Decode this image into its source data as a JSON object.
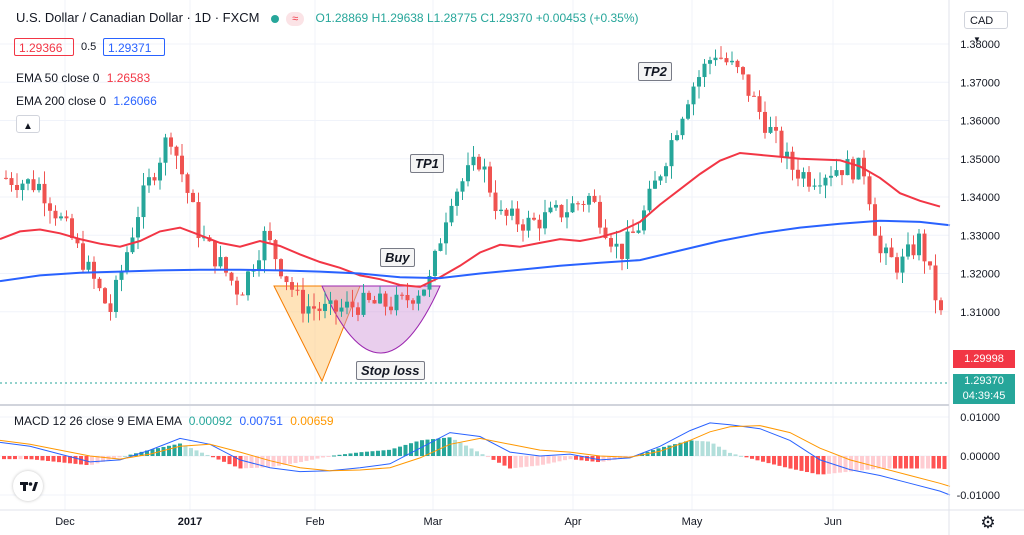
{
  "header": {
    "title": "U.S. Dollar / Canadian Dollar · 1D · FXCM",
    "ohlc": {
      "o": "O1.28869",
      "h": "H1.29638",
      "l": "L1.28775",
      "c": "C1.29370",
      "chg": "+0.00453 (+0.35%)"
    },
    "sell_price": "1.29366",
    "spread": "0.5",
    "buy_price": "1.29371",
    "currency": "CAD"
  },
  "indicators": {
    "ema50": {
      "label": "EMA 50 close 0",
      "value": "1.26583",
      "color": "#f23645"
    },
    "ema200": {
      "label": "EMA 200 close 0",
      "value": "1.26066",
      "color": "#2962ff"
    },
    "macd": {
      "label": "MACD 12 26 close 9 EMA EMA",
      "v1": "0.00092",
      "v2": "0.00751",
      "v3": "0.00659"
    }
  },
  "annotations": {
    "tp1": "TP1",
    "tp2": "TP2",
    "buy": "Buy",
    "stop": "Stop loss"
  },
  "price_tags": {
    "ema_value": "1.29998",
    "last_price": "1.29370",
    "countdown": "04:39:45"
  },
  "colors": {
    "up": "#26a69a",
    "down": "#ef5350",
    "macd_line": "#2962ff",
    "signal_line": "#ff9800"
  },
  "chart_data": {
    "type": "line",
    "price_axis": {
      "ticks": [
        "1.38000",
        "1.37000",
        "1.36000",
        "1.35000",
        "1.34000",
        "1.33000",
        "1.32000",
        "1.31000"
      ],
      "ylim": [
        1.295,
        1.383
      ]
    },
    "macd_axis": {
      "ticks": [
        "0.01000",
        "0.00000",
        "-0.01000"
      ],
      "ylim": [
        -0.0122,
        0.0122
      ]
    },
    "time_axis": [
      "Dec",
      "2017",
      "Feb",
      "Mar",
      "Apr",
      "May",
      "Jun"
    ],
    "series": [
      {
        "name": "EMA 50",
        "x": [
          0,
          20,
          40,
          60,
          80,
          100,
          120,
          140,
          160,
          180,
          200,
          220,
          240,
          260,
          280,
          300,
          320,
          340,
          360,
          380,
          400,
          420,
          440,
          460,
          480,
          500,
          520,
          540,
          560,
          580,
          600,
          620,
          640,
          660,
          680,
          700,
          720,
          740,
          760,
          780,
          800,
          820,
          840,
          860,
          880,
          900,
          920,
          940
        ],
        "values": [
          1.329,
          1.331,
          1.3315,
          1.3305,
          1.329,
          1.3278,
          1.327,
          1.3285,
          1.331,
          1.332,
          1.33,
          1.328,
          1.327,
          1.3285,
          1.3272,
          1.325,
          1.323,
          1.3215,
          1.3195,
          1.3185,
          1.317,
          1.3165,
          1.319,
          1.322,
          1.3255,
          1.3275,
          1.327,
          1.328,
          1.329,
          1.3285,
          1.3295,
          1.331,
          1.3335,
          1.338,
          1.342,
          1.346,
          1.3495,
          1.3515,
          1.351,
          1.3505,
          1.35,
          1.3498,
          1.3496,
          1.348,
          1.345,
          1.341,
          1.339,
          1.3375
        ]
      },
      {
        "name": "EMA 200",
        "x": [
          0,
          40,
          80,
          120,
          160,
          200,
          240,
          280,
          320,
          360,
          400,
          440,
          480,
          520,
          560,
          600,
          640,
          680,
          720,
          760,
          800,
          840,
          880,
          920,
          950
        ],
        "values": [
          1.318,
          1.3195,
          1.3202,
          1.3205,
          1.3208,
          1.321,
          1.321,
          1.3208,
          1.3205,
          1.32,
          1.319,
          1.3188,
          1.32,
          1.321,
          1.322,
          1.3228,
          1.3235,
          1.326,
          1.3285,
          1.3305,
          1.332,
          1.333,
          1.3338,
          1.3335,
          1.3326
        ]
      },
      {
        "name": "MACD",
        "x": [
          0,
          30,
          60,
          90,
          120,
          150,
          180,
          210,
          240,
          270,
          300,
          330,
          360,
          390,
          420,
          450,
          480,
          510,
          540,
          570,
          600,
          630,
          660,
          690,
          710,
          730,
          760,
          790,
          820,
          850,
          880,
          910,
          940,
          950
        ],
        "values": [
          0.0035,
          0.0025,
          0.0005,
          -0.0015,
          -0.001,
          0.0015,
          0.0045,
          0.003,
          -0.001,
          -0.003,
          -0.004,
          -0.0038,
          -0.003,
          -0.002,
          0.002,
          0.006,
          0.005,
          0.001,
          0.0,
          0.0005,
          -0.001,
          -0.0005,
          0.0025,
          0.0065,
          0.0085,
          0.008,
          0.007,
          0.004,
          -0.001,
          -0.0035,
          -0.005,
          -0.007,
          -0.009,
          -0.01
        ]
      },
      {
        "name": "Signal",
        "x": [
          0,
          30,
          60,
          90,
          120,
          150,
          180,
          210,
          240,
          270,
          300,
          330,
          360,
          390,
          420,
          450,
          480,
          510,
          540,
          570,
          600,
          630,
          660,
          690,
          710,
          730,
          760,
          790,
          820,
          850,
          880,
          910,
          940,
          950
        ],
        "values": [
          0.004,
          0.003,
          0.0015,
          0.0,
          -0.0008,
          0.0005,
          0.0025,
          0.003,
          0.001,
          -0.0012,
          -0.003,
          -0.0038,
          -0.0036,
          -0.003,
          -0.0005,
          0.003,
          0.0045,
          0.003,
          0.0015,
          0.001,
          0.0,
          -0.0003,
          0.0012,
          0.004,
          0.0062,
          0.0075,
          0.0078,
          0.006,
          0.002,
          -0.001,
          -0.003,
          -0.005,
          -0.007,
          -0.0078
        ]
      }
    ]
  }
}
